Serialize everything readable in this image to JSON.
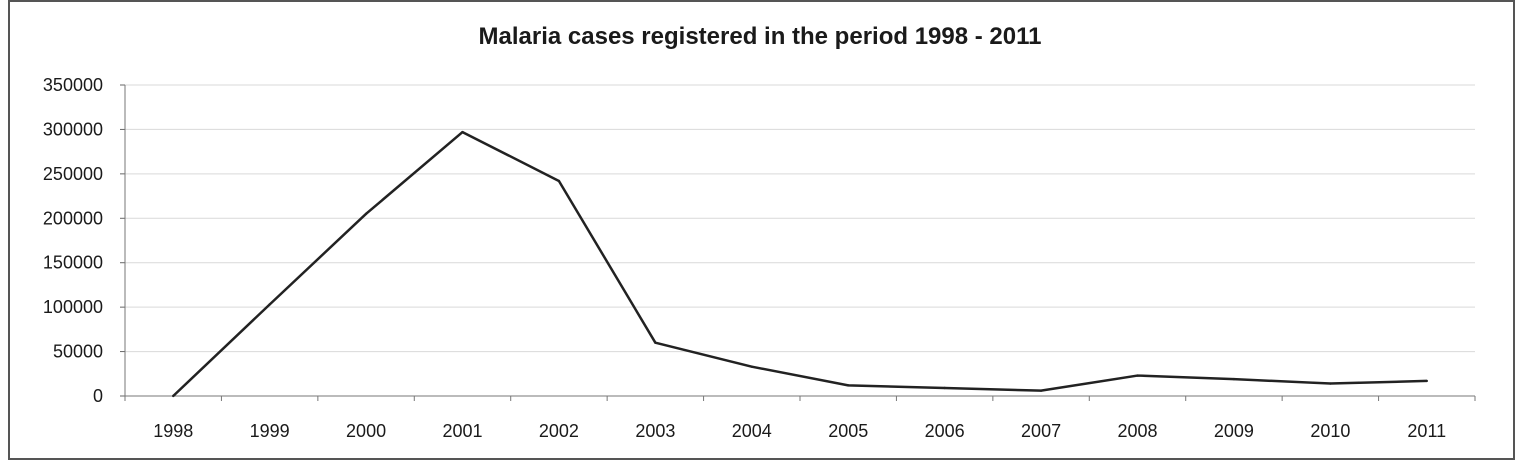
{
  "chart_data": {
    "type": "line",
    "title": "Malaria cases registered in the period 1998 - 2011",
    "xlabel": "",
    "ylabel": "",
    "categories": [
      "1998",
      "1999",
      "2000",
      "2001",
      "2002",
      "2003",
      "2004",
      "2005",
      "2006",
      "2007",
      "2008",
      "2009",
      "2010",
      "2011"
    ],
    "series": [
      {
        "values": [
          0,
          103000,
          205000,
          297000,
          242000,
          60000,
          33000,
          12000,
          9000,
          6000,
          23000,
          19000,
          14000,
          17000
        ]
      }
    ],
    "ylim": [
      0,
      350000
    ],
    "yticks": [
      0,
      50000,
      100000,
      150000,
      200000,
      250000,
      300000,
      350000
    ],
    "ytick_labels": [
      "0",
      "50000",
      "100000",
      "150000",
      "200000",
      "250000",
      "300000",
      "350000"
    ],
    "grid": true,
    "legend": "none",
    "line_color": "#222222",
    "grid_color": "#d9d9d9"
  }
}
